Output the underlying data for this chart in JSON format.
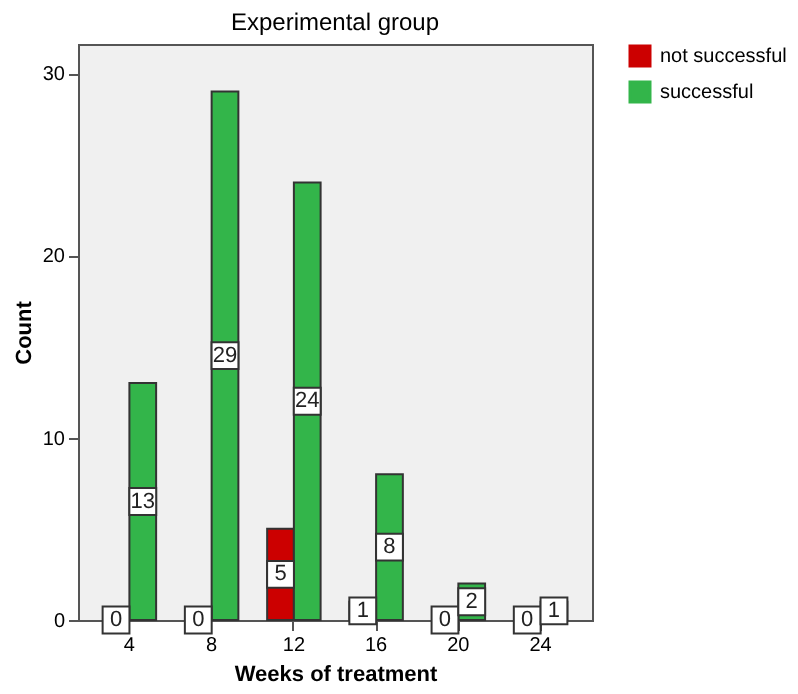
{
  "chart_data": {
    "type": "bar",
    "title": "Experimental group",
    "xlabel": "Weeks of treatment",
    "ylabel": "Count",
    "categories": [
      "4",
      "8",
      "12",
      "16",
      "20",
      "24"
    ],
    "series": [
      {
        "name": "not successful",
        "color": "#cc0000",
        "values": [
          0,
          0,
          5,
          1,
          0,
          0
        ]
      },
      {
        "name": "successful",
        "color": "#33b54a",
        "values": [
          13,
          29,
          24,
          8,
          2,
          1
        ]
      }
    ],
    "ylim": [
      0,
      31.6
    ],
    "yticks": [
      0,
      10,
      20,
      30
    ],
    "grid": false,
    "legend": "top right",
    "data_labels": true
  }
}
